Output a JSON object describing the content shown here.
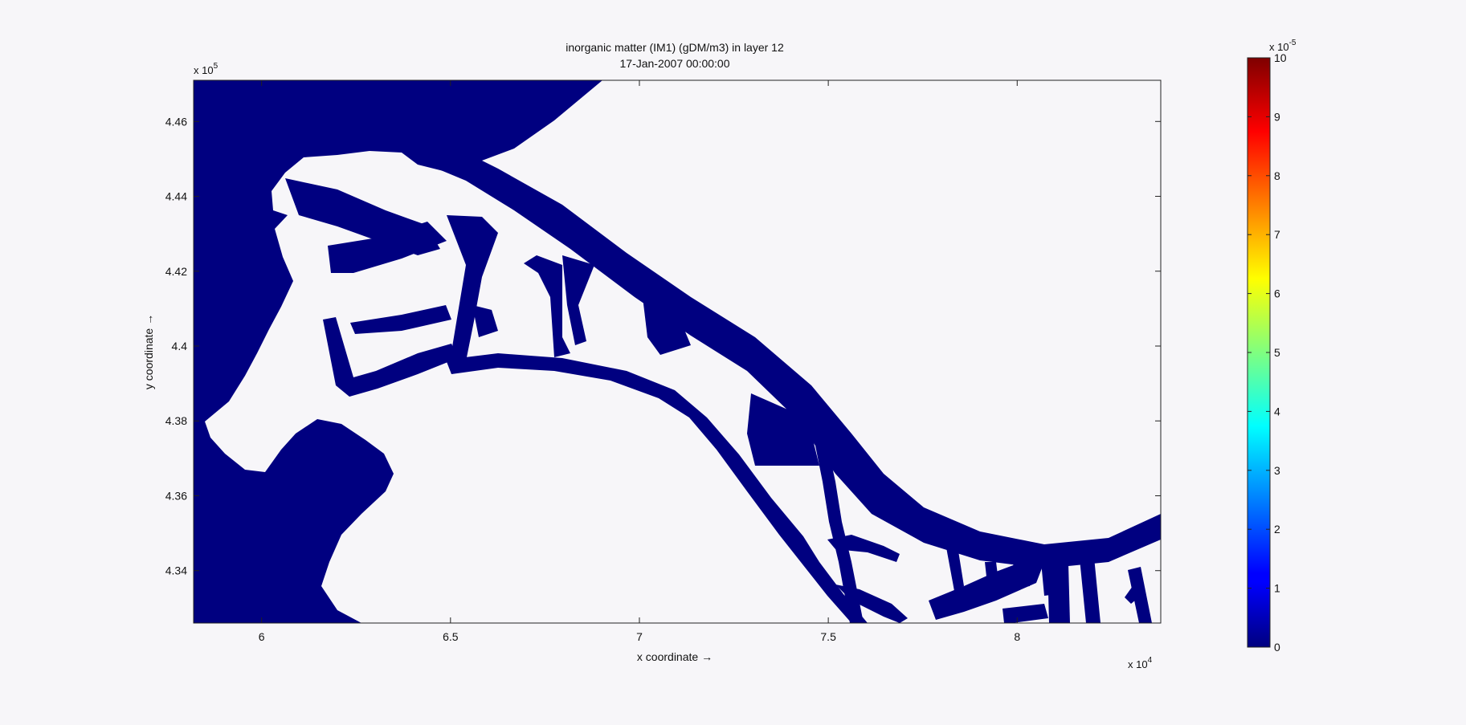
{
  "chart_data": {
    "type": "heatmap",
    "title": "inorganic matter (IM1) (gDM/m3) in layer 12",
    "subtitle": "17-Jan-2007 00:00:00",
    "xlabel": "x coordinate →",
    "ylabel": "y coordinate →",
    "x_multiplier": "x 10",
    "x_multiplier_exp": "4",
    "y_multiplier": "x 10",
    "y_multiplier_exp": "5",
    "xlim": [
      5.82,
      8.38
    ],
    "ylim": [
      4.326,
      4.471
    ],
    "x_ticks": [
      6,
      6.5,
      7,
      7.5,
      8
    ],
    "x_tick_labels": [
      "6",
      "6.5",
      "7",
      "7.5",
      "8"
    ],
    "y_ticks": [
      4.34,
      4.36,
      4.38,
      4.4,
      4.42,
      4.44,
      4.46
    ],
    "y_tick_labels": [
      "4.34",
      "4.36",
      "4.38",
      "4.4",
      "4.42",
      "4.44",
      "4.46"
    ],
    "field_value": 0,
    "field_color": "#000080",
    "background_color": "#f7f6f9",
    "colorbar": {
      "min": 0,
      "max": 10,
      "ticks": [
        0,
        1,
        2,
        3,
        4,
        5,
        6,
        7,
        8,
        9,
        10
      ],
      "tick_labels": [
        "0",
        "1",
        "2",
        "3",
        "4",
        "5",
        "6",
        "7",
        "8",
        "9",
        "10"
      ],
      "multiplier": "x 10",
      "multiplier_exp": "-5",
      "colormap": "jet"
    }
  }
}
